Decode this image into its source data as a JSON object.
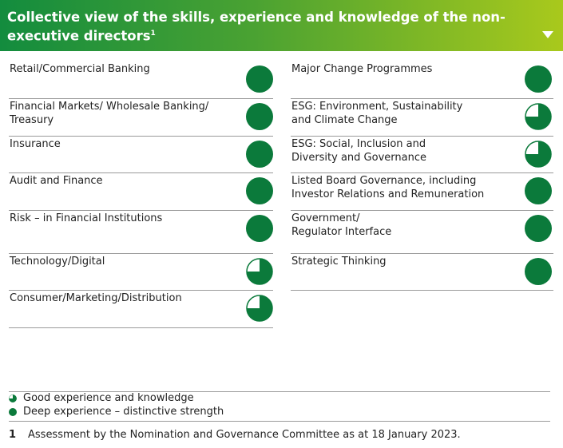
{
  "header": {
    "title": "Collective view of the skills, experience and knowledge of the non-executive directors",
    "title_note": "1"
  },
  "left_column": [
    "Retail/Commercial Banking",
    "Financial Markets/ Wholesale Banking/ Treasury",
    "Insurance",
    "Audit and Finance",
    "Risk – in Financial Institutions",
    "Technology/Digital",
    "Consumer/Marketing/Distribution"
  ],
  "right_column": [
    "Major Change Programmes",
    "ESG: Environment, Sustainability and Climate Change",
    "ESG: Social, Inclusion and Diversity and Governance",
    "Listed Board Governance, including Investor Relations and Remuneration",
    "Government/ Regulator Interface",
    "Strategic Thinking"
  ],
  "legend": [
    "Good experience and knowledge",
    "Deep experience – distinctive strength"
  ],
  "footnote": {
    "marker": "1",
    "text": "Assessment by the Nomination and Governance Committee as at 18 January 2023."
  }
}
